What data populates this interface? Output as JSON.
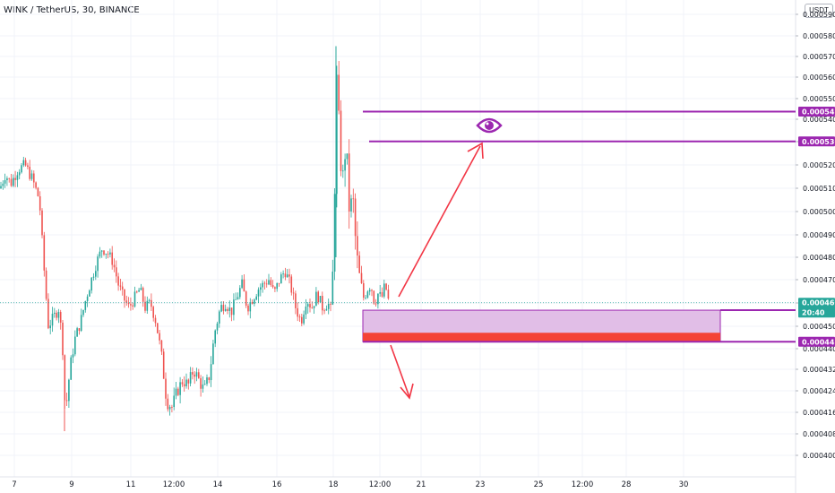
{
  "header": {
    "symbol_title": "WINK / TetherUS, 30, BINANCE",
    "currency": "USDT"
  },
  "chart_data": {
    "type": "candlestick",
    "title": "WINK / TetherUS, 30, BINANCE",
    "ylim": [
      0.0003955,
      0.000595
    ],
    "yticks": [
      "0.0004000",
      "0.0004080",
      "0.0004160",
      "0.0004240",
      "0.0004320",
      "0.0004400",
      "0.0004500",
      "0.0004600",
      "0.0004700",
      "0.0004800",
      "0.0004900",
      "0.0005000",
      "0.0005100",
      "0.0005200",
      "0.0005300",
      "0.0005400",
      "0.0005500",
      "0.0005600",
      "0.0005700",
      "0.0005800",
      "0.0005900"
    ],
    "xticks": [
      "7",
      "9",
      "11",
      "12:00",
      "14",
      "16",
      "18",
      "12:00",
      "21",
      "23",
      "25",
      "12:00",
      "28",
      "30"
    ],
    "levels": [
      {
        "value": "0.0005437",
        "color": "#9c27b0"
      },
      {
        "value": "0.0005301",
        "color": "#9c27b0"
      },
      {
        "value": "0.0004569",
        "color": "#9c27b0"
      },
      {
        "value": "0.0004431",
        "color": "#9c27b0"
      }
    ],
    "last_price": {
      "value": "0.0004601",
      "countdown": "20:40",
      "color": "#26a69a"
    },
    "zone": {
      "top": 0.0004569,
      "bottom": 0.0004431,
      "fill": "#e1bee7",
      "stop_band_color": "#f44336"
    },
    "colors": {
      "up": "#26a69a",
      "down": "#ef5350",
      "arrow": "#f23645",
      "level": "#9c27b0"
    },
    "series": [
      {
        "name": "",
        "anchors": [
          [
            0,
            0.00051
          ],
          [
            6,
            0.000516
          ],
          [
            12,
            0.000512
          ],
          [
            20,
            0.000518
          ],
          [
            28,
            0.00052
          ],
          [
            36,
            0.000514
          ],
          [
            44,
            0.000505
          ],
          [
            50,
            0.00047
          ],
          [
            54,
            0.00045
          ],
          [
            60,
            0.000454
          ],
          [
            66,
            0.000458
          ],
          [
            70,
            0.00044
          ],
          [
            73,
            0.000415
          ],
          [
            78,
            0.000432
          ],
          [
            84,
            0.000445
          ],
          [
            90,
            0.000452
          ],
          [
            96,
            0.000462
          ],
          [
            102,
            0.00047
          ],
          [
            108,
            0.000478
          ],
          [
            114,
            0.000484
          ],
          [
            120,
            0.000482
          ],
          [
            126,
            0.000478
          ],
          [
            132,
            0.000468
          ],
          [
            138,
            0.000462
          ],
          [
            144,
            0.000458
          ],
          [
            150,
            0.000462
          ],
          [
            156,
            0.000466
          ],
          [
            162,
            0.000458
          ],
          [
            168,
            0.00046
          ],
          [
            174,
            0.000452
          ],
          [
            180,
            0.000438
          ],
          [
            186,
            0.00042
          ],
          [
            192,
            0.000418
          ],
          [
            198,
            0.000424
          ],
          [
            204,
            0.000428
          ],
          [
            210,
            0.000426
          ],
          [
            216,
            0.000432
          ],
          [
            222,
            0.000428
          ],
          [
            228,
            0.000424
          ],
          [
            234,
            0.00043
          ],
          [
            240,
            0.000448
          ],
          [
            246,
            0.000458
          ],
          [
            252,
            0.00046
          ],
          [
            258,
            0.000456
          ],
          [
            264,
            0.000462
          ],
          [
            270,
            0.000468
          ],
          [
            276,
            0.000458
          ],
          [
            282,
            0.000462
          ],
          [
            288,
            0.000466
          ],
          [
            294,
            0.000468
          ],
          [
            300,
            0.00047
          ],
          [
            306,
            0.000464
          ],
          [
            312,
            0.00047
          ],
          [
            318,
            0.000474
          ],
          [
            324,
            0.000468
          ],
          [
            330,
            0.000458
          ],
          [
            336,
            0.000452
          ],
          [
            342,
            0.000462
          ],
          [
            348,
            0.000458
          ],
          [
            354,
            0.000464
          ],
          [
            360,
            0.000458
          ],
          [
            366,
            0.00046
          ],
          [
            370,
            0.000456
          ],
          [
            372,
            0.00048
          ],
          [
            374,
            0.00052
          ],
          [
            376,
            0.00056
          ],
          [
            378,
            0.00054
          ],
          [
            382,
            0.00051
          ],
          [
            386,
            0.00053
          ],
          [
            390,
            0.0005
          ],
          [
            394,
            0.000505
          ],
          [
            398,
            0.00048
          ],
          [
            402,
            0.00047
          ],
          [
            406,
            0.000462
          ],
          [
            410,
            0.000466
          ],
          [
            414,
            0.000468
          ],
          [
            418,
            0.00046
          ],
          [
            422,
            0.000464
          ],
          [
            426,
            0.000462
          ],
          [
            430,
            0.000468
          ],
          [
            434,
            0.00046
          ]
        ]
      }
    ]
  }
}
